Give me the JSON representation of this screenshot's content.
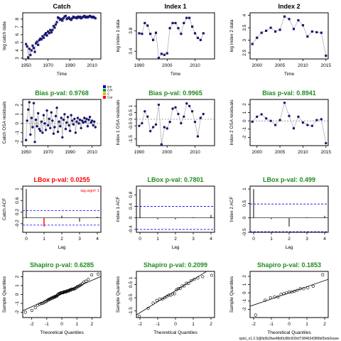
{
  "footer": "spict_v1.2.3@fa5b2fae48d0c88c609cf7384634389b05eb2ease",
  "colors": {
    "point": "#191970",
    "line": "#b3b3b3",
    "green": "#228B22",
    "red": "#ff0000",
    "blue": "#0000ff",
    "grey": "#808080"
  },
  "legend": [
    "Ipn",
    "C/P",
    "C",
    "Cat"
  ],
  "chart_data": [
    {
      "type": "line",
      "title": "Catch",
      "title_color": "black",
      "xlabel": "Time",
      "ylabel": "log catch data",
      "xlim": [
        1947,
        2018
      ],
      "ylim": [
        2.9,
        8.8
      ],
      "xticks": [
        1950,
        1970,
        1990,
        2010
      ],
      "yticks": [
        3,
        4,
        5,
        6,
        7,
        8
      ],
      "x_start": 1950,
      "y": [
        4.8,
        4.5,
        3.1,
        4.2,
        3.4,
        4.0,
        4.6,
        4.3,
        3.8,
        4.9,
        5.1,
        4.7,
        5.3,
        5.5,
        5.4,
        5.8,
        5.6,
        6.0,
        6.2,
        5.9,
        6.4,
        6.2,
        6.6,
        6.3,
        6.6,
        7.1,
        6.9,
        7.3,
        7.6,
        8.2,
        8.1,
        7.9,
        8.0,
        7.8,
        8.1,
        8.3,
        8.4,
        8.0,
        8.1,
        8.2,
        8.0,
        7.9,
        8.1,
        8.3,
        8.2,
        8.2,
        8.1,
        8.3,
        8.2,
        8.3,
        8.1,
        8.2,
        8.3,
        8.4,
        8.2,
        8.3,
        8.2,
        8.3,
        8.4,
        8.3,
        8.2,
        8.3,
        8.2,
        8.1
      ],
      "marker": "square"
    },
    {
      "type": "line",
      "title": "Index 1",
      "title_color": "black",
      "xlabel": "Time",
      "ylabel": "log index 1 data",
      "xlim": [
        1989,
        2017
      ],
      "ylim": [
        3.25,
        4.15
      ],
      "xticks": [
        1990,
        2000,
        2010
      ],
      "yticks": [
        3.4,
        3.8
      ],
      "x_start": 1990,
      "y": [
        3.75,
        3.74,
        3.95,
        3.9,
        3.74,
        3.62,
        3.76,
        3.27,
        3.35,
        3.33,
        3.36,
        3.85,
        3.95,
        3.95,
        3.85,
        3.74,
        3.95,
        4.05,
        4.05,
        3.88,
        3.75,
        3.66,
        3.62,
        3.75
      ],
      "marker": "square"
    },
    {
      "type": "line",
      "title": "Index 2",
      "title_color": "black",
      "xlabel": "Time",
      "ylabel": "log index 2 data",
      "xlim": [
        1998.5,
        2015.5
      ],
      "ylim": [
        2.25,
        4.1
      ],
      "xticks": [
        2000,
        2005,
        2010,
        2015
      ],
      "yticks": [
        2.5,
        3.0,
        3.5,
        4.0
      ],
      "x_start": 1999,
      "y": [
        2.85,
        3.1,
        3.3,
        3.38,
        3.5,
        3.35,
        3.42,
        3.95,
        3.85,
        3.45,
        3.8,
        3.6,
        3.15,
        3.35,
        3.32,
        3.3,
        2.38
      ],
      "marker": "square"
    },
    {
      "type": "scatter",
      "title": "Bias p-val: 0.9768",
      "title_color": "green",
      "xlabel": "",
      "ylabel": "Catch OSA residuals",
      "xlim": [
        1947,
        2018
      ],
      "ylim": [
        -2.4,
        2.6
      ],
      "xticks": [
        1950,
        1970,
        1990,
        2010
      ],
      "yticks": [
        -2,
        -1,
        0,
        1,
        2
      ],
      "x_start": 1950,
      "hline": 0,
      "legend": true,
      "y": [
        -1.8,
        0.3,
        1.5,
        2.3,
        -1.2,
        0.6,
        -0.4,
        2.2,
        -2.0,
        0.4,
        -0.3,
        1.1,
        -0.6,
        -0.8,
        0.2,
        -1.0,
        0.9,
        0.0,
        -0.7,
        1.4,
        -0.2,
        0.5,
        -0.5,
        1.2,
        0.3,
        -1.1,
        -0.4,
        0.8,
        1.7,
        -0.9,
        0.2,
        -0.3,
        0.6,
        -1.5,
        0.4,
        1.0,
        -0.6,
        0.1,
        0.7,
        -0.2,
        -0.8,
        0.9,
        0.3,
        -0.1,
        0.5,
        -1.0,
        0.2,
        0.6,
        0.0,
        0.4,
        -0.5,
        0.3,
        0.1,
        0.6,
        0.2,
        0.5,
        -0.3,
        0.4,
        0.7,
        0.1,
        0.3,
        -0.2,
        0.2,
        -0.4
      ]
    },
    {
      "type": "scatter",
      "title": "Bias p-val: 0.9965",
      "title_color": "green",
      "xlabel": "",
      "ylabel": "Index 1 OSA residuals",
      "xlim": [
        1989,
        2017
      ],
      "ylim": [
        -2.0,
        1.5
      ],
      "xticks": [
        1990,
        2000,
        2010
      ],
      "yticks": [
        -1.5,
        -0.5,
        0.0,
        0.5,
        1.0
      ],
      "x_start": 1990,
      "hline": 0,
      "y": [
        -0.5,
        -0.3,
        0.6,
        0.2,
        -0.9,
        -0.6,
        -0.4,
        1.1,
        -1.9,
        -0.6,
        -0.7,
        -0.2,
        0.8,
        0.9,
        0.4,
        -0.3,
        0.2,
        1.2,
        1.0,
        0.6,
        -0.2,
        -1.3,
        0.1,
        0.4
      ]
    },
    {
      "type": "scatter",
      "title": "Bias p-val: 0.8941",
      "title_color": "green",
      "xlabel": "",
      "ylabel": "Index 2 OSA residuals",
      "xlim": [
        1998.5,
        2015.5
      ],
      "ylim": [
        -3.0,
        2.6
      ],
      "xticks": [
        2000,
        2005,
        2010,
        2015
      ],
      "yticks": [
        -2,
        -1,
        0,
        1,
        2
      ],
      "x_start": 1999,
      "hline": 0,
      "y": [
        -0.1,
        0.5,
        0.8,
        0.3,
        0.0,
        -0.5,
        0.1,
        2.2,
        0.6,
        -0.9,
        0.5,
        -0.2,
        -0.5,
        -0.6,
        0.1,
        0.2,
        -2.7
      ]
    },
    {
      "type": "acf",
      "title": "LBox p-val: 0.0255",
      "title_color": "red",
      "xlabel": "Lag",
      "ylabel": "Catch ACF",
      "xlim": [
        -0.2,
        4.2
      ],
      "ylim": [
        -0.5,
        1.1
      ],
      "xticks": [
        0,
        1,
        2,
        3,
        4
      ],
      "yticks": [
        -0.2,
        0.2,
        0.6,
        1.0
      ],
      "acf": [
        1.0,
        -0.3,
        0.08,
        -0.13,
        0.04
      ],
      "ci": 0.25,
      "signif": [
        1
      ],
      "annotation": "lag.signf: 1"
    },
    {
      "type": "acf",
      "title": "LBox p-val: 0.7801",
      "title_color": "green",
      "xlabel": "Lag",
      "ylabel": "Index 1 ACF",
      "xlim": [
        -0.2,
        4.2
      ],
      "ylim": [
        -0.5,
        1.1
      ],
      "xticks": [
        0,
        1,
        2,
        3,
        4
      ],
      "yticks": [
        -0.4,
        0.0,
        0.4,
        0.8
      ],
      "acf": [
        1.0,
        -0.05,
        -0.05,
        0.02,
        0.1
      ],
      "ci": 0.4
    },
    {
      "type": "acf",
      "title": "LBox p-val: 0.499",
      "title_color": "green",
      "xlabel": "Lag",
      "ylabel": "Index 2 ACF",
      "xlim": [
        -0.2,
        4.2
      ],
      "ylim": [
        -0.5,
        1.1
      ],
      "xticks": [
        0,
        1,
        2,
        3,
        4
      ],
      "yticks": [
        -0.5,
        0.0,
        0.5,
        1.0
      ],
      "acf": [
        1.0,
        -0.04,
        -0.3,
        0.02,
        0.07
      ],
      "ci": 0.48
    },
    {
      "type": "qq",
      "title": "Shapiro p-val: 0.6285",
      "title_color": "green",
      "xlabel": "Theoretical Quantiles",
      "ylabel": "Sample Quantiles",
      "xlim": [
        -2.6,
        2.6
      ],
      "ylim": [
        -2.6,
        2.6
      ],
      "xticks": [
        -2,
        -1,
        0,
        1,
        2
      ],
      "yticks": [
        -2,
        -1,
        0,
        1,
        2
      ],
      "sample": [
        -1.8,
        0.3,
        1.5,
        2.3,
        -1.2,
        0.6,
        -0.4,
        2.2,
        -2.0,
        0.4,
        -0.3,
        1.1,
        -0.6,
        -0.8,
        0.2,
        -1.0,
        0.9,
        0.0,
        -0.7,
        1.4,
        -0.2,
        0.5,
        -0.5,
        1.2,
        0.3,
        -1.1,
        -0.4,
        0.8,
        1.7,
        -0.9,
        0.2,
        -0.3,
        0.6,
        -1.5,
        0.4,
        1.0,
        -0.6,
        0.1,
        0.7,
        -0.2,
        -0.8,
        0.9,
        0.3,
        -0.1,
        0.5,
        -1.0,
        0.2,
        0.6,
        0.0,
        0.4,
        -0.5,
        0.3,
        0.1,
        0.6,
        0.2,
        0.5,
        -0.3,
        0.4,
        0.7,
        0.1,
        0.3,
        -0.2,
        0.2,
        -0.4
      ]
    },
    {
      "type": "qq",
      "title": "Shapiro p-val: 0.2099",
      "title_color": "green",
      "xlabel": "Theoretical Quantiles",
      "ylabel": "Sample Quantiles",
      "xlim": [
        -2.2,
        2.2
      ],
      "ylim": [
        -2.0,
        1.5
      ],
      "xticks": [
        -2,
        -1,
        0,
        1,
        2
      ],
      "yticks": [
        -1.5,
        -0.5,
        0.5,
        1.0
      ],
      "sample": [
        -0.5,
        -0.3,
        0.6,
        0.2,
        -0.9,
        -0.6,
        -0.4,
        1.1,
        -1.9,
        -0.6,
        -0.7,
        -0.2,
        0.8,
        0.9,
        0.4,
        -0.3,
        0.2,
        1.2,
        1.0,
        0.6,
        -0.2,
        -1.3,
        0.1,
        0.4
      ]
    },
    {
      "type": "qq",
      "title": "Shapiro p-val: 0.1853",
      "title_color": "green",
      "xlabel": "Theoretical Quantiles",
      "ylabel": "Sample Quantiles",
      "xlim": [
        -2.2,
        2.2
      ],
      "ylim": [
        -3.0,
        2.6
      ],
      "xticks": [
        -2,
        -1,
        0,
        1,
        2
      ],
      "yticks": [
        -2,
        -1,
        0,
        1,
        2
      ],
      "sample": [
        -0.1,
        0.5,
        0.8,
        0.3,
        0.0,
        -0.5,
        0.1,
        2.2,
        0.6,
        -0.9,
        0.5,
        -0.2,
        -0.5,
        -0.6,
        0.1,
        0.2,
        -2.7
      ]
    }
  ]
}
